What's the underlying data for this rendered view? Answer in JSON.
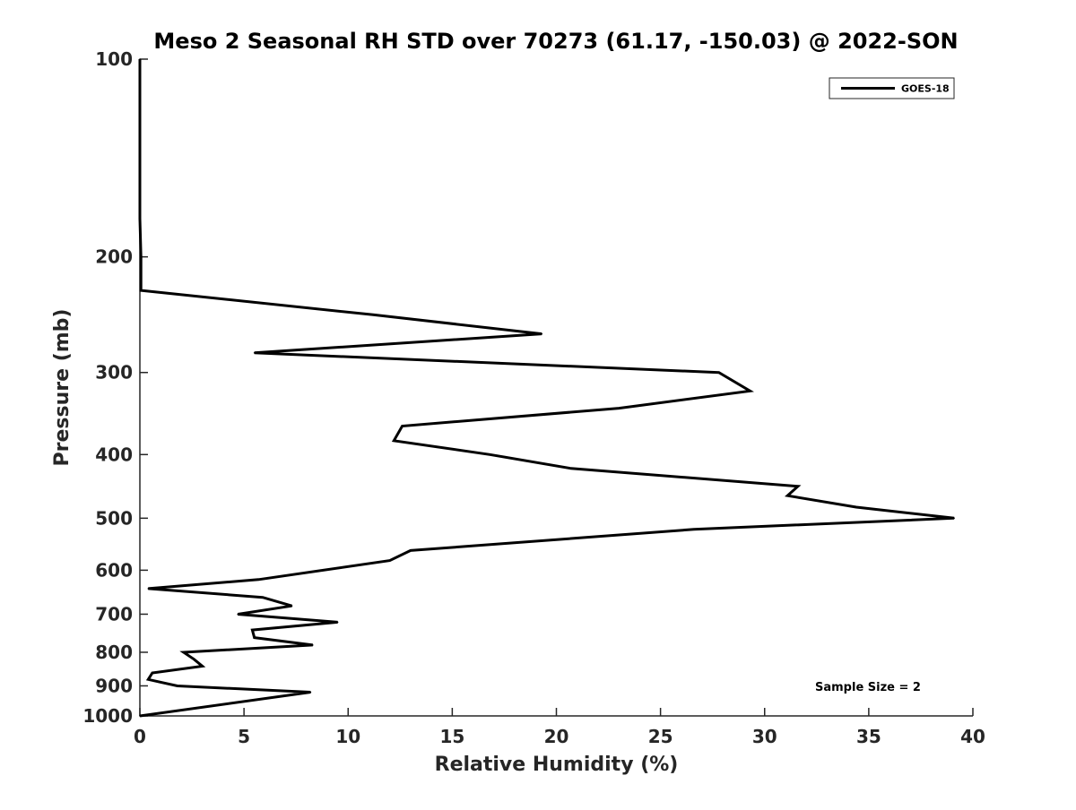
{
  "chart_data": {
    "type": "line",
    "title": "Meso 2 Seasonal RH STD over 70273 (61.17, -150.03) @ 2022-SON",
    "xlabel": "Relative Humidity (%)",
    "ylabel": "Pressure (mb)",
    "xlim": [
      0,
      40
    ],
    "ylim": [
      1000,
      100
    ],
    "y_scale": "log",
    "y_reversed": true,
    "grid": false,
    "x_ticks": [
      0,
      5,
      10,
      15,
      20,
      25,
      30,
      35,
      40
    ],
    "x_tick_labels": [
      "0",
      "5",
      "10",
      "15",
      "20",
      "25",
      "30",
      "35",
      "40"
    ],
    "y_ticks": [
      100,
      200,
      300,
      400,
      500,
      600,
      700,
      800,
      900,
      1000
    ],
    "y_tick_labels": [
      "100",
      "200",
      "300",
      "400",
      "500",
      "600",
      "700",
      "800",
      "900",
      "1000"
    ],
    "legend_position": "top-right",
    "annotation": "Sample Size = 2",
    "series": [
      {
        "name": "GOES-18",
        "color": "#000000",
        "points": [
          {
            "x": 0.0,
            "y": 100
          },
          {
            "x": 0.0,
            "y": 175
          },
          {
            "x": 0.05,
            "y": 200
          },
          {
            "x": 0.05,
            "y": 225
          },
          {
            "x": 11.2,
            "y": 245
          },
          {
            "x": 19.3,
            "y": 262
          },
          {
            "x": 5.5,
            "y": 280
          },
          {
            "x": 27.8,
            "y": 300
          },
          {
            "x": 29.3,
            "y": 320
          },
          {
            "x": 23.0,
            "y": 340
          },
          {
            "x": 12.6,
            "y": 362
          },
          {
            "x": 12.2,
            "y": 381
          },
          {
            "x": 16.8,
            "y": 400
          },
          {
            "x": 20.7,
            "y": 420
          },
          {
            "x": 31.6,
            "y": 447
          },
          {
            "x": 31.1,
            "y": 462
          },
          {
            "x": 34.4,
            "y": 481
          },
          {
            "x": 39.1,
            "y": 500
          },
          {
            "x": 26.6,
            "y": 520
          },
          {
            "x": 13.0,
            "y": 560
          },
          {
            "x": 12.0,
            "y": 580
          },
          {
            "x": 5.7,
            "y": 620
          },
          {
            "x": 0.4,
            "y": 640
          },
          {
            "x": 5.9,
            "y": 660
          },
          {
            "x": 7.3,
            "y": 680
          },
          {
            "x": 4.7,
            "y": 700
          },
          {
            "x": 9.5,
            "y": 720
          },
          {
            "x": 5.4,
            "y": 740
          },
          {
            "x": 5.5,
            "y": 760
          },
          {
            "x": 8.3,
            "y": 780
          },
          {
            "x": 2.1,
            "y": 800
          },
          {
            "x": 2.6,
            "y": 820
          },
          {
            "x": 3.0,
            "y": 840
          },
          {
            "x": 0.6,
            "y": 860
          },
          {
            "x": 0.4,
            "y": 880
          },
          {
            "x": 1.8,
            "y": 900
          },
          {
            "x": 8.2,
            "y": 920
          },
          {
            "x": 0.0,
            "y": 1000
          }
        ]
      }
    ]
  }
}
